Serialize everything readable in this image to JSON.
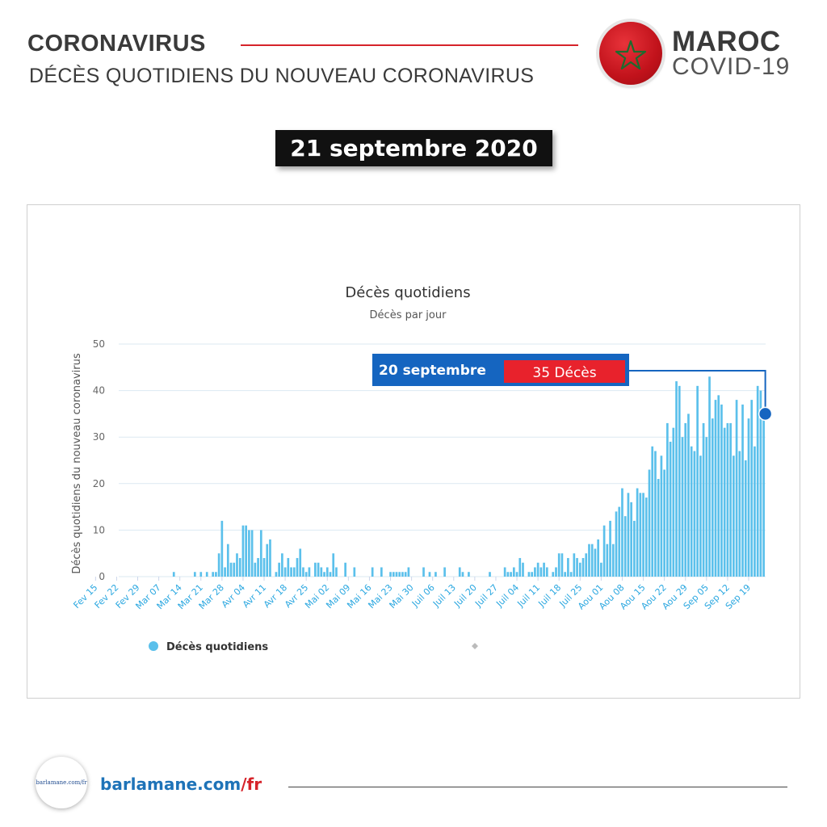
{
  "header": {
    "title": "CORONAVIRUS",
    "subtitle": "DÉCÈS QUOTIDIENS DU NOUVEAU CORONAVIRUS",
    "country": "MAROC",
    "tag": "COVID-19",
    "date": "21 septembre 2020"
  },
  "footer": {
    "logo_text": "barlamane.com/fr",
    "url_main": "barlamane.com",
    "url_sep": "/",
    "url_lang": "fr"
  },
  "colors": {
    "accent_red": "#d6232a",
    "bar": "#5bc0eb",
    "callout_blue": "#1565c0",
    "callout_red": "#e8222c"
  },
  "chart_data": {
    "type": "bar",
    "title": "Décès quotidiens",
    "subtitle": "Décès par jour",
    "ylabel": "Décès quotidiens du nouveau coronavirus",
    "ylim": [
      0,
      50
    ],
    "yticks": [
      0,
      10,
      20,
      30,
      40,
      50
    ],
    "grid": true,
    "legend_position": "bottom-left",
    "x_start": "2020-02-15",
    "x_end": "2020-09-20",
    "x_tick_labels": [
      "Fev 15",
      "Fev 22",
      "Fev 29",
      "Mar 07",
      "Mar 14",
      "Mar 21",
      "Mar 28",
      "Avr 04",
      "Avr 11",
      "Avr 18",
      "Avr 25",
      "Mai 02",
      "Mai 09",
      "Mai 16",
      "Mai 23",
      "Mai 30",
      "Juil 06",
      "Juil 13",
      "Juil 20",
      "Juil 27",
      "Juil 04",
      "Juil 11",
      "Juil 18",
      "Juil 25",
      "Aou 01",
      "Aou 08",
      "Aou 15",
      "Aou 22",
      "Aou 29",
      "Sep 05",
      "Sep 12",
      "Sep 19"
    ],
    "series": [
      {
        "name": "Décès quotidiens",
        "values": [
          0,
          0,
          0,
          0,
          0,
          0,
          0,
          0,
          0,
          0,
          0,
          0,
          0,
          0,
          0,
          0,
          0,
          0,
          0,
          0,
          0,
          0,
          0,
          0,
          0,
          0,
          1,
          0,
          0,
          0,
          0,
          0,
          0,
          1,
          0,
          1,
          0,
          1,
          0,
          1,
          1,
          5,
          12,
          2,
          7,
          3,
          3,
          5,
          4,
          11,
          11,
          10,
          10,
          3,
          4,
          10,
          4,
          7,
          8,
          0,
          1,
          3,
          5,
          2,
          4,
          2,
          2,
          4,
          6,
          2,
          1,
          2,
          0,
          3,
          3,
          2,
          1,
          2,
          1,
          5,
          2,
          0,
          0,
          3,
          0,
          0,
          2,
          0,
          0,
          0,
          0,
          0,
          2,
          0,
          0,
          2,
          0,
          0,
          1,
          1,
          1,
          1,
          1,
          1,
          2,
          0,
          0,
          0,
          0,
          2,
          0,
          1,
          0,
          1,
          0,
          0,
          2,
          0,
          0,
          0,
          0,
          2,
          1,
          0,
          1,
          0,
          0,
          0,
          0,
          0,
          0,
          1,
          0,
          0,
          0,
          0,
          2,
          1,
          1,
          2,
          1,
          4,
          3,
          0,
          1,
          1,
          2,
          3,
          2,
          3,
          2,
          0,
          1,
          2,
          5,
          5,
          1,
          4,
          1,
          5,
          4,
          3,
          4,
          5,
          7,
          7,
          6,
          8,
          3,
          11,
          7,
          12,
          7,
          14,
          15,
          19,
          13,
          18,
          16,
          12,
          19,
          18,
          18,
          17,
          23,
          28,
          27,
          21,
          26,
          23,
          33,
          29,
          32,
          42,
          41,
          30,
          33,
          35,
          28,
          27,
          41,
          26,
          33,
          30,
          43,
          34,
          38,
          39,
          37,
          32,
          33,
          33,
          26,
          38,
          27,
          37,
          25,
          34,
          38,
          28,
          41,
          40,
          35
        ]
      }
    ],
    "annotation": {
      "date_label": "20 septembre",
      "value_label": "35 Décès",
      "value": 35
    }
  }
}
